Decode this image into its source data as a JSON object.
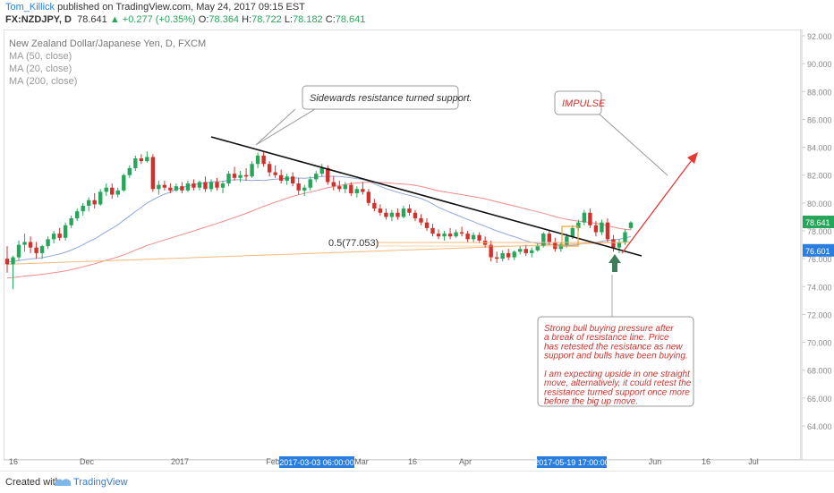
{
  "header": {
    "author": "Tom_Killick",
    "published_text": "published on TradingView.com, May 24, 2017 09:15 EST",
    "symbol": "FX:NZDJPY, D",
    "last": "78.641",
    "change": "+0.277 (+0.35%)",
    "open_label": "O:",
    "open": "78.364",
    "high_label": "H:",
    "high": "78.722",
    "low_label": "L:",
    "low": "78.182",
    "close_label": "C:",
    "close": "78.641"
  },
  "legend": {
    "title": "New Zealand Dollar/Japanese Yen, D, FXCM",
    "items": [
      "MA (50, close)",
      "MA (20, close)",
      "MA (200, close)"
    ]
  },
  "footer": {
    "created": "Created with",
    "brand": "TradingView"
  },
  "colors": {
    "up": "#26a65b",
    "down": "#d0312d",
    "ma50": "#f08a8a",
    "ma20": "#8fa8d8",
    "ma200": "#f6b97a",
    "annotation_text": "#d0312d",
    "arrow": "#e53935",
    "marker": "#3e7d5a",
    "price_tag": "#2a7ee0"
  },
  "chart_data": {
    "type": "candlestick",
    "y_axis_ticks": [
      "92.000",
      "90.000",
      "88.000",
      "86.000",
      "84.000",
      "82.000",
      "80.000",
      "78.000",
      "76.000",
      "74.000",
      "72.000",
      "70.000",
      "68.000",
      "66.000",
      "64.000"
    ],
    "ylim": [
      62.0,
      92.5
    ],
    "x_axis_ticks": [
      "16",
      "Dec",
      "2017",
      "Feb",
      "Mar",
      "16",
      "Apr",
      "Jun",
      "16",
      "Jul"
    ],
    "x_highlight_labels": [
      "2017-03-03 06:00:00",
      "2017-05-19 17:00:00"
    ],
    "price_tags": {
      "last": "78.641",
      "other": "76.601"
    },
    "fib_label": "0.5(77.053)",
    "candles": [
      {
        "o": 76.0,
        "h": 76.9,
        "l": 75.0,
        "c": 75.6
      },
      {
        "o": 75.6,
        "h": 76.2,
        "l": 73.8,
        "c": 76.1
      },
      {
        "o": 76.1,
        "h": 77.3,
        "l": 75.9,
        "c": 77.0
      },
      {
        "o": 77.0,
        "h": 77.8,
        "l": 76.5,
        "c": 77.2
      },
      {
        "o": 77.2,
        "h": 77.6,
        "l": 76.4,
        "c": 76.8
      },
      {
        "o": 76.8,
        "h": 77.2,
        "l": 76.0,
        "c": 76.4
      },
      {
        "o": 76.4,
        "h": 77.0,
        "l": 76.0,
        "c": 76.9
      },
      {
        "o": 76.9,
        "h": 77.6,
        "l": 76.7,
        "c": 77.4
      },
      {
        "o": 77.4,
        "h": 78.0,
        "l": 77.1,
        "c": 77.8
      },
      {
        "o": 77.8,
        "h": 78.2,
        "l": 77.3,
        "c": 77.5
      },
      {
        "o": 77.5,
        "h": 78.6,
        "l": 77.3,
        "c": 78.4
      },
      {
        "o": 78.4,
        "h": 79.1,
        "l": 78.2,
        "c": 78.9
      },
      {
        "o": 78.9,
        "h": 79.6,
        "l": 78.7,
        "c": 79.4
      },
      {
        "o": 79.4,
        "h": 80.0,
        "l": 79.1,
        "c": 79.8
      },
      {
        "o": 79.8,
        "h": 80.4,
        "l": 79.4,
        "c": 80.2
      },
      {
        "o": 80.2,
        "h": 80.7,
        "l": 79.6,
        "c": 79.9
      },
      {
        "o": 79.9,
        "h": 81.0,
        "l": 79.8,
        "c": 80.8
      },
      {
        "o": 80.8,
        "h": 81.4,
        "l": 80.5,
        "c": 81.1
      },
      {
        "o": 81.1,
        "h": 81.4,
        "l": 80.3,
        "c": 80.6
      },
      {
        "o": 80.6,
        "h": 81.1,
        "l": 80.4,
        "c": 80.9
      },
      {
        "o": 80.9,
        "h": 82.1,
        "l": 80.8,
        "c": 82.0
      },
      {
        "o": 82.0,
        "h": 82.7,
        "l": 81.8,
        "c": 82.5
      },
      {
        "o": 82.5,
        "h": 83.4,
        "l": 82.3,
        "c": 83.2
      },
      {
        "o": 83.2,
        "h": 83.5,
        "l": 82.8,
        "c": 83.0
      },
      {
        "o": 83.0,
        "h": 83.7,
        "l": 82.9,
        "c": 83.3
      },
      {
        "o": 83.3,
        "h": 83.5,
        "l": 80.8,
        "c": 81.0
      },
      {
        "o": 81.0,
        "h": 81.6,
        "l": 80.6,
        "c": 81.3
      },
      {
        "o": 81.3,
        "h": 81.6,
        "l": 80.9,
        "c": 81.1
      },
      {
        "o": 81.1,
        "h": 81.4,
        "l": 80.7,
        "c": 80.9
      },
      {
        "o": 80.9,
        "h": 81.4,
        "l": 80.8,
        "c": 81.2
      },
      {
        "o": 81.2,
        "h": 81.5,
        "l": 80.7,
        "c": 80.9
      },
      {
        "o": 80.9,
        "h": 81.6,
        "l": 80.8,
        "c": 81.4
      },
      {
        "o": 81.4,
        "h": 81.7,
        "l": 80.9,
        "c": 81.1
      },
      {
        "o": 81.1,
        "h": 81.6,
        "l": 80.9,
        "c": 81.5
      },
      {
        "o": 81.5,
        "h": 81.9,
        "l": 80.8,
        "c": 81.0
      },
      {
        "o": 81.0,
        "h": 81.7,
        "l": 80.8,
        "c": 81.5
      },
      {
        "o": 81.5,
        "h": 81.8,
        "l": 80.9,
        "c": 81.1
      },
      {
        "o": 81.1,
        "h": 81.6,
        "l": 80.7,
        "c": 81.4
      },
      {
        "o": 81.4,
        "h": 82.3,
        "l": 81.2,
        "c": 82.1
      },
      {
        "o": 82.1,
        "h": 82.6,
        "l": 81.6,
        "c": 81.8
      },
      {
        "o": 81.8,
        "h": 82.3,
        "l": 81.5,
        "c": 82.0
      },
      {
        "o": 82.0,
        "h": 82.5,
        "l": 81.6,
        "c": 81.9
      },
      {
        "o": 81.9,
        "h": 83.0,
        "l": 81.8,
        "c": 82.8
      },
      {
        "o": 82.8,
        "h": 83.6,
        "l": 82.5,
        "c": 83.4
      },
      {
        "o": 83.4,
        "h": 83.7,
        "l": 82.6,
        "c": 82.8
      },
      {
        "o": 82.8,
        "h": 83.0,
        "l": 81.9,
        "c": 82.2
      },
      {
        "o": 82.2,
        "h": 82.7,
        "l": 81.8,
        "c": 82.0
      },
      {
        "o": 82.0,
        "h": 82.4,
        "l": 81.4,
        "c": 81.6
      },
      {
        "o": 81.6,
        "h": 82.1,
        "l": 81.3,
        "c": 81.9
      },
      {
        "o": 81.9,
        "h": 82.2,
        "l": 81.2,
        "c": 81.4
      },
      {
        "o": 81.4,
        "h": 81.8,
        "l": 80.6,
        "c": 80.9
      },
      {
        "o": 80.9,
        "h": 81.3,
        "l": 80.5,
        "c": 81.1
      },
      {
        "o": 81.1,
        "h": 81.9,
        "l": 80.9,
        "c": 81.7
      },
      {
        "o": 81.7,
        "h": 82.3,
        "l": 81.5,
        "c": 82.1
      },
      {
        "o": 82.1,
        "h": 82.8,
        "l": 81.9,
        "c": 82.5
      },
      {
        "o": 82.5,
        "h": 82.7,
        "l": 81.3,
        "c": 81.5
      },
      {
        "o": 81.5,
        "h": 81.9,
        "l": 80.9,
        "c": 81.2
      },
      {
        "o": 81.2,
        "h": 81.6,
        "l": 80.8,
        "c": 81.0
      },
      {
        "o": 81.0,
        "h": 81.5,
        "l": 80.7,
        "c": 81.3
      },
      {
        "o": 81.3,
        "h": 81.5,
        "l": 80.5,
        "c": 80.7
      },
      {
        "o": 80.7,
        "h": 81.2,
        "l": 80.4,
        "c": 81.0
      },
      {
        "o": 81.0,
        "h": 81.5,
        "l": 80.6,
        "c": 80.8
      },
      {
        "o": 80.8,
        "h": 81.0,
        "l": 79.8,
        "c": 80.0
      },
      {
        "o": 80.0,
        "h": 80.3,
        "l": 79.4,
        "c": 79.6
      },
      {
        "o": 79.6,
        "h": 79.9,
        "l": 79.1,
        "c": 79.3
      },
      {
        "o": 79.3,
        "h": 79.6,
        "l": 78.8,
        "c": 79.0
      },
      {
        "o": 79.0,
        "h": 79.5,
        "l": 78.7,
        "c": 79.3
      },
      {
        "o": 79.3,
        "h": 79.6,
        "l": 78.8,
        "c": 79.0
      },
      {
        "o": 79.0,
        "h": 79.8,
        "l": 78.9,
        "c": 79.6
      },
      {
        "o": 79.6,
        "h": 79.9,
        "l": 79.1,
        "c": 79.3
      },
      {
        "o": 79.3,
        "h": 79.5,
        "l": 78.7,
        "c": 78.9
      },
      {
        "o": 78.9,
        "h": 79.2,
        "l": 78.4,
        "c": 78.6
      },
      {
        "o": 78.6,
        "h": 78.9,
        "l": 78.0,
        "c": 78.2
      },
      {
        "o": 78.2,
        "h": 78.5,
        "l": 77.6,
        "c": 77.8
      },
      {
        "o": 77.8,
        "h": 78.1,
        "l": 77.4,
        "c": 77.6
      },
      {
        "o": 77.6,
        "h": 78.0,
        "l": 77.3,
        "c": 77.8
      },
      {
        "o": 77.8,
        "h": 78.2,
        "l": 77.4,
        "c": 77.6
      },
      {
        "o": 77.6,
        "h": 78.1,
        "l": 77.5,
        "c": 77.9
      },
      {
        "o": 77.9,
        "h": 78.3,
        "l": 77.6,
        "c": 77.8
      },
      {
        "o": 77.8,
        "h": 78.0,
        "l": 77.2,
        "c": 77.4
      },
      {
        "o": 77.4,
        "h": 77.9,
        "l": 77.2,
        "c": 77.7
      },
      {
        "o": 77.7,
        "h": 77.9,
        "l": 77.1,
        "c": 77.3
      },
      {
        "o": 77.3,
        "h": 77.6,
        "l": 76.8,
        "c": 77.0
      },
      {
        "o": 77.0,
        "h": 77.3,
        "l": 75.8,
        "c": 76.1
      },
      {
        "o": 76.1,
        "h": 76.5,
        "l": 75.7,
        "c": 76.0
      },
      {
        "o": 76.0,
        "h": 76.6,
        "l": 75.8,
        "c": 76.4
      },
      {
        "o": 76.4,
        "h": 76.7,
        "l": 75.9,
        "c": 76.1
      },
      {
        "o": 76.1,
        "h": 76.6,
        "l": 75.9,
        "c": 76.5
      },
      {
        "o": 76.5,
        "h": 76.9,
        "l": 76.3,
        "c": 76.7
      },
      {
        "o": 76.7,
        "h": 77.0,
        "l": 76.2,
        "c": 76.4
      },
      {
        "o": 76.4,
        "h": 76.8,
        "l": 76.1,
        "c": 76.6
      },
      {
        "o": 76.6,
        "h": 77.1,
        "l": 76.5,
        "c": 76.9
      },
      {
        "o": 76.9,
        "h": 77.9,
        "l": 76.8,
        "c": 77.8
      },
      {
        "o": 77.8,
        "h": 78.0,
        "l": 77.0,
        "c": 77.2
      },
      {
        "o": 77.2,
        "h": 77.5,
        "l": 76.5,
        "c": 76.7
      },
      {
        "o": 76.7,
        "h": 77.2,
        "l": 76.5,
        "c": 77.0
      },
      {
        "o": 77.0,
        "h": 77.8,
        "l": 76.8,
        "c": 77.6
      },
      {
        "o": 77.6,
        "h": 78.4,
        "l": 77.4,
        "c": 78.2
      },
      {
        "o": 78.2,
        "h": 78.8,
        "l": 78.0,
        "c": 78.6
      },
      {
        "o": 78.6,
        "h": 79.5,
        "l": 78.4,
        "c": 79.3
      },
      {
        "o": 79.3,
        "h": 79.6,
        "l": 78.2,
        "c": 78.4
      },
      {
        "o": 78.4,
        "h": 78.7,
        "l": 77.6,
        "c": 77.9
      },
      {
        "o": 77.9,
        "h": 78.8,
        "l": 77.7,
        "c": 78.6
      },
      {
        "o": 78.6,
        "h": 78.9,
        "l": 77.2,
        "c": 77.4
      },
      {
        "o": 77.4,
        "h": 77.7,
        "l": 76.5,
        "c": 76.8
      },
      {
        "o": 76.8,
        "h": 77.4,
        "l": 76.4,
        "c": 77.2
      },
      {
        "o": 77.2,
        "h": 78.1,
        "l": 77.0,
        "c": 77.9
      },
      {
        "o": 78.2,
        "h": 78.7,
        "l": 78.1,
        "c": 78.6
      }
    ]
  },
  "annotations": {
    "callout_resistance": "Sidewards resistance turned support.",
    "impulse": "IMPULSE",
    "analysis_lines": [
      "Strong bull buying pressure after",
      "a break of resistance line. Price",
      "has retested the resistance as new",
      "support and bulls have been buying.",
      "",
      "I am expecting upside in one straight",
      "move, alternatively, it could retest the",
      "resistance turned support once more",
      "before the big up move."
    ]
  }
}
